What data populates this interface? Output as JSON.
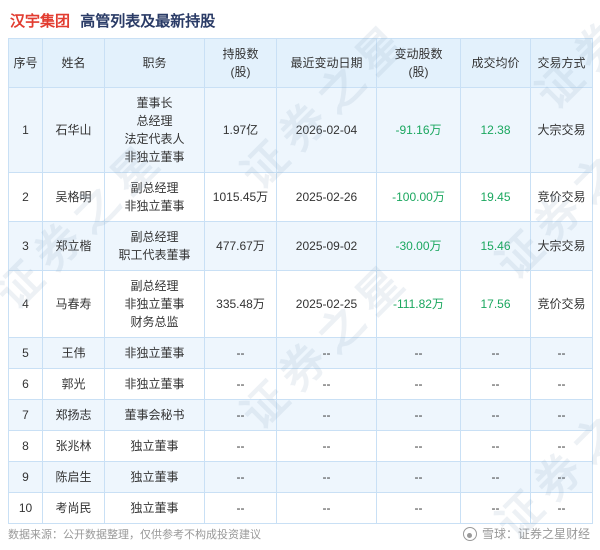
{
  "title": {
    "company": "汉宇集团",
    "subtitle": "高管列表及最新持股"
  },
  "chart_data": {
    "type": "table",
    "title": "汉宇集团 高管列表及最新持股",
    "columns": [
      "序号",
      "姓名",
      "职务",
      "持股数(股)",
      "最近变动日期",
      "变动股数(股)",
      "成交均价",
      "交易方式"
    ],
    "display_columns": [
      "序号",
      "姓名",
      "职务",
      "持股数\n(股)",
      "最近变动日期",
      "变动股数\n(股)",
      "成交均价",
      "交易方式"
    ],
    "rows": [
      [
        "1",
        "石华山",
        "董事长\n总经理\n法定代表人\n非独立董事",
        "1.97亿",
        "2026-02-04",
        "-91.16万",
        "12.38",
        "大宗交易"
      ],
      [
        "2",
        "吴格明",
        "副总经理\n非独立董事",
        "1015.45万",
        "2025-02-26",
        "-100.00万",
        "19.45",
        "竞价交易"
      ],
      [
        "3",
        "郑立楷",
        "副总经理\n职工代表董事",
        "477.67万",
        "2025-09-02",
        "-30.00万",
        "15.46",
        "大宗交易"
      ],
      [
        "4",
        "马春寿",
        "副总经理\n非独立董事\n财务总监",
        "335.48万",
        "2025-02-25",
        "-111.82万",
        "17.56",
        "竞价交易"
      ],
      [
        "5",
        "王伟",
        "非独立董事",
        "--",
        "--",
        "--",
        "--",
        "--"
      ],
      [
        "6",
        "郭光",
        "非独立董事",
        "--",
        "--",
        "--",
        "--",
        "--"
      ],
      [
        "7",
        "郑扬志",
        "董事会秘书",
        "--",
        "--",
        "--",
        "--",
        "--"
      ],
      [
        "8",
        "张兆林",
        "独立董事",
        "--",
        "--",
        "--",
        "--",
        "--"
      ],
      [
        "9",
        "陈启生",
        "独立董事",
        "--",
        "--",
        "--",
        "--",
        "--"
      ],
      [
        "10",
        "考尚民",
        "独立董事",
        "--",
        "--",
        "--",
        "--",
        "--"
      ]
    ]
  },
  "watermark": {
    "text": "证券之星"
  },
  "footer": {
    "source": "数据来源：公开数据整理，仅供参考不构成投资建议",
    "brand": "雪球：证券之星财经"
  },
  "colors": {
    "accent_red": "#e23c30",
    "title_navy": "#2a3b66",
    "green": "#1ba75f",
    "header_bg": "#e3f1fc",
    "stripe_bg": "#eef6fd",
    "border": "#c9e0f5"
  }
}
